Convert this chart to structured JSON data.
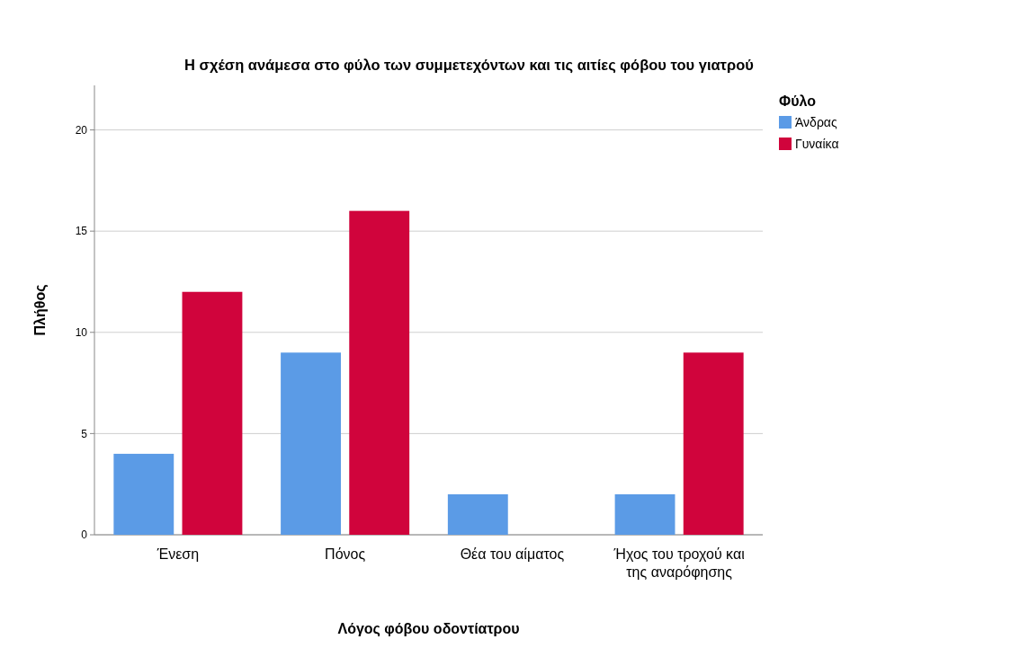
{
  "chart_data": {
    "type": "bar",
    "title": "Η σχέση ανάμεσα στο φύλο των συμμετεχόντων και τις αιτίες φόβου του γιατρού",
    "xlabel": "Λόγος φόβου οδοντίατρου",
    "ylabel": "Πλήθος",
    "legend_title": "Φύλο",
    "categories": [
      "Ένεση",
      "Πόνος",
      "Θέα του αίματος",
      "Ήχος του τροχού και της αναρόφησης"
    ],
    "series": [
      {
        "name": "Άνδρας",
        "color": "#5b9be6",
        "values": [
          4,
          9,
          2,
          2
        ]
      },
      {
        "name": "Γυναίκα",
        "color": "#d0043c",
        "values": [
          12,
          16,
          0,
          9
        ]
      }
    ],
    "ylim": [
      0,
      22.2
    ],
    "yticks": [
      0,
      5,
      10,
      15,
      20
    ],
    "grid": "y",
    "legend": "top right"
  }
}
